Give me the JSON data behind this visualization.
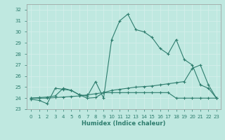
{
  "xlabel": "Humidex (Indice chaleur)",
  "bg_color": "#bfe8e0",
  "grid_color": "#d4eeea",
  "line_color": "#2e7d6e",
  "xlim": [
    -0.5,
    23.5
  ],
  "ylim": [
    23,
    32.5
  ],
  "yticks": [
    23,
    24,
    25,
    26,
    27,
    28,
    29,
    30,
    31,
    32
  ],
  "xticks": [
    0,
    1,
    2,
    3,
    4,
    5,
    6,
    7,
    8,
    9,
    10,
    11,
    12,
    13,
    14,
    15,
    16,
    17,
    18,
    19,
    20,
    21,
    22,
    23
  ],
  "line1_x": [
    0,
    1,
    2,
    3,
    4,
    5,
    6,
    7,
    8,
    9,
    10,
    11,
    12,
    13,
    14,
    15,
    16,
    17,
    18,
    19,
    20,
    21,
    22,
    23
  ],
  "line1_y": [
    23.9,
    23.8,
    23.5,
    24.9,
    24.8,
    24.7,
    24.3,
    24.2,
    25.5,
    24.0,
    29.3,
    31.0,
    31.6,
    30.2,
    30.0,
    29.5,
    28.5,
    28.0,
    29.3,
    27.5,
    27.0,
    25.2,
    24.9,
    24.0
  ],
  "line2_x": [
    0,
    1,
    2,
    3,
    4,
    5,
    6,
    7,
    8,
    9,
    10,
    11,
    12,
    13,
    14,
    15,
    16,
    17,
    18,
    19,
    20,
    21,
    22,
    23
  ],
  "line2_y": [
    24.0,
    24.05,
    24.1,
    24.2,
    24.9,
    24.7,
    24.3,
    24.0,
    24.05,
    24.5,
    24.7,
    24.8,
    24.9,
    25.0,
    25.05,
    25.1,
    25.2,
    25.3,
    25.4,
    25.5,
    26.7,
    27.0,
    25.2,
    24.0
  ],
  "line3_x": [
    0,
    1,
    2,
    3,
    4,
    5,
    6,
    7,
    8,
    9,
    10,
    11,
    12,
    13,
    14,
    15,
    16,
    17,
    18,
    19,
    20,
    21,
    22,
    23
  ],
  "line3_y": [
    24.0,
    24.0,
    24.0,
    24.05,
    24.1,
    24.15,
    24.2,
    24.3,
    24.4,
    24.5,
    24.5,
    24.5,
    24.5,
    24.5,
    24.5,
    24.5,
    24.5,
    24.5,
    24.0,
    24.0,
    24.0,
    24.0,
    24.0,
    24.0
  ]
}
